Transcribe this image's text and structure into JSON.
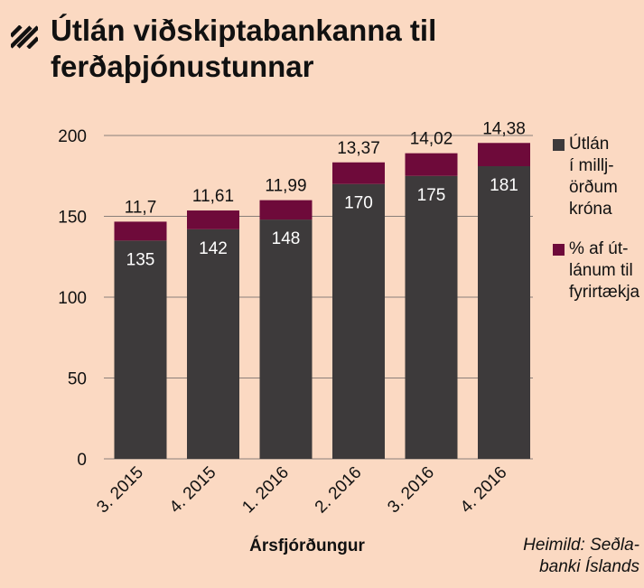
{
  "header": {
    "title_line1": "Útlán viðskiptabankanna til",
    "title_line2": "ferðaþjónustunnar"
  },
  "legend": {
    "items": [
      {
        "label_lines": [
          "Útlán",
          "í millj-",
          "örðum",
          "króna"
        ],
        "color": "#3d3a3b"
      },
      {
        "label_lines": [
          "% af út-",
          "lánum til",
          "fyrirtækja"
        ],
        "color": "#6e0a3a"
      }
    ]
  },
  "footer": {
    "xlabel": "Ársfjórðungur",
    "source_lines": [
      "Heimild: Seðla-",
      "banki Íslands"
    ]
  },
  "chart_data": {
    "type": "bar",
    "stacked": true,
    "categories": [
      "3. 2015",
      "4. 2015",
      "1. 2016",
      "2. 2016",
      "3. 2016",
      "4. 2016"
    ],
    "series": [
      {
        "name": "Útlán í milljörðum króna",
        "values": [
          135,
          142,
          148,
          170,
          175,
          181
        ],
        "color": "#3d3a3b"
      },
      {
        "name": "% af útlánum til fyrirtækja",
        "values": [
          11.7,
          11.61,
          11.99,
          13.37,
          14.02,
          14.38
        ],
        "value_labels": [
          "11,7",
          "11,61",
          "11,99",
          "13,37",
          "14,02",
          "14,38"
        ],
        "color": "#6e0a3a"
      }
    ],
    "xlabel": "Ársfjórðungur",
    "ylim": [
      0,
      200
    ],
    "yticks": [
      0,
      50,
      100,
      150,
      200
    ],
    "grid": true,
    "legend_position": "right"
  }
}
